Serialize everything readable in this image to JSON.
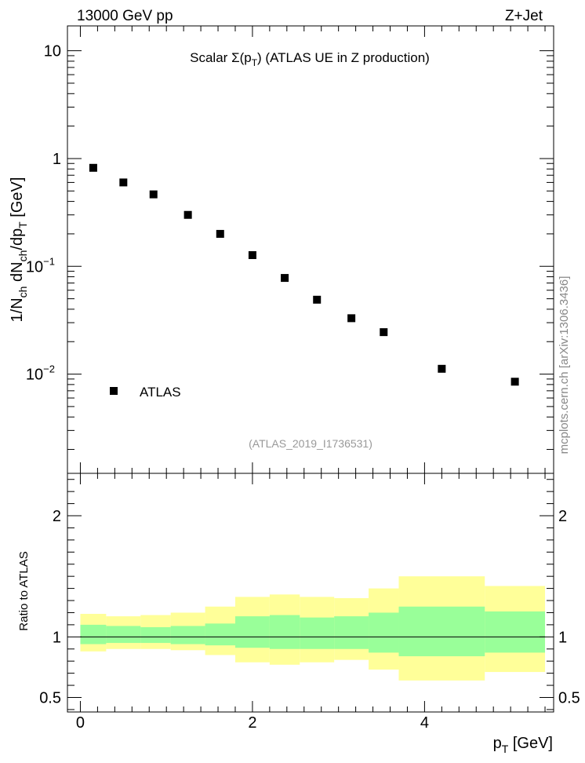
{
  "header": {
    "left": "13000 GeV pp",
    "right": "Z+Jet"
  },
  "side_label": "mcplots.cern.ch [arXiv:1306.3436]",
  "chart_data": {
    "type": "scatter",
    "title": "Scalar Σ(pT) (ATLAS UE in Z production)",
    "title_parts": {
      "pre": "Scalar ",
      "sigma": "Σ(p",
      "sub": "T",
      "post": ") (ATLAS UE in Z production)"
    },
    "analysis_id": "(ATLAS_2019_I1736531)",
    "ylabel": "1/Nch dNch/dpT [GeV]",
    "xlabel": "pT [GeV]",
    "xlabel_parts": {
      "main": "p",
      "sub": "T",
      "unit": " [GeV]"
    },
    "ylabel_parts": {
      "a": "1/N",
      "a_sub": "ch",
      "b": " dN",
      "b_sub": "ch",
      "c": "/dp",
      "c_sub": "T",
      "d": " [GeV]"
    },
    "yscale": "log",
    "ylim": [
      0.0012,
      17
    ],
    "xlim": [
      -0.15,
      5.5
    ],
    "ytick_labels": [
      {
        "value": 10,
        "base": "10",
        "exp": ""
      },
      {
        "value": 1,
        "base": "1",
        "exp": ""
      },
      {
        "value": 0.1,
        "base": "10",
        "exp": "−1"
      },
      {
        "value": 0.01,
        "base": "10",
        "exp": "−2"
      }
    ],
    "legend": [
      {
        "label": "ATLAS",
        "marker": "square",
        "placement": "bottom-left"
      }
    ],
    "series": [
      {
        "name": "ATLAS",
        "x": [
          0.15,
          0.5,
          0.85,
          1.25,
          1.625,
          2.0,
          2.375,
          2.75,
          3.15,
          3.525,
          4.2,
          5.05
        ],
        "y": [
          0.82,
          0.6,
          0.465,
          0.3,
          0.2,
          0.127,
          0.078,
          0.049,
          0.033,
          0.0245,
          0.0112,
          0.0085
        ]
      }
    ],
    "ratio": {
      "ylabel": "Ratio to ATLAS",
      "ylim": [
        0.38,
        2.35
      ],
      "yticks": [
        0.5,
        1,
        2
      ],
      "ytick_labels": [
        "0.5",
        "1",
        "2"
      ],
      "xticks": [
        0,
        2,
        4
      ],
      "xtick_labels": [
        "0",
        "2",
        "4"
      ],
      "bin_edges": [
        0.0,
        0.3,
        0.7,
        1.05,
        1.45,
        1.8,
        2.2,
        2.55,
        2.95,
        3.35,
        3.7,
        4.7,
        5.4
      ],
      "green_band": [
        [
          0.94,
          1.1
        ],
        [
          0.95,
          1.09
        ],
        [
          0.95,
          1.08
        ],
        [
          0.94,
          1.09
        ],
        [
          0.93,
          1.11
        ],
        [
          0.91,
          1.17
        ],
        [
          0.9,
          1.18
        ],
        [
          0.9,
          1.16
        ],
        [
          0.9,
          1.17
        ],
        [
          0.87,
          1.2
        ],
        [
          0.84,
          1.25
        ],
        [
          0.87,
          1.21
        ]
      ],
      "yellow_band": [
        [
          0.88,
          1.19
        ],
        [
          0.9,
          1.17
        ],
        [
          0.9,
          1.18
        ],
        [
          0.89,
          1.2
        ],
        [
          0.85,
          1.25
        ],
        [
          0.79,
          1.33
        ],
        [
          0.77,
          1.35
        ],
        [
          0.79,
          1.33
        ],
        [
          0.81,
          1.32
        ],
        [
          0.73,
          1.4
        ],
        [
          0.64,
          1.5
        ],
        [
          0.71,
          1.42
        ]
      ],
      "band_colors": {
        "yellow": "#ffff99",
        "green": "#99ff99"
      }
    }
  }
}
